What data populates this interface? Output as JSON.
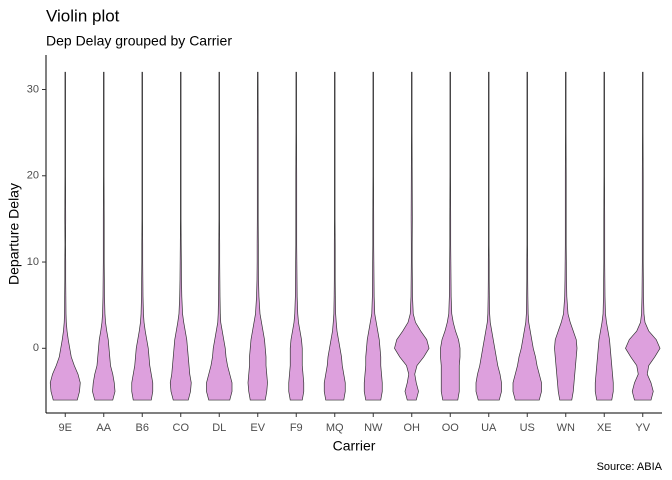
{
  "chart_data": {
    "type": "violin",
    "title": "Violin plot",
    "subtitle": "Dep Delay grouped by Carrier",
    "x_label": "Carrier",
    "y_label": "Departure Delay",
    "caption": "Source: ABIA",
    "color": "#dda0dd",
    "outline_color": "#333333",
    "ylim": [
      -7.5,
      34
    ],
    "yticks": [
      0,
      10,
      20,
      30
    ],
    "categories": [
      "9E",
      "AA",
      "B6",
      "CO",
      "DL",
      "EV",
      "F9",
      "MQ",
      "NW",
      "OH",
      "OO",
      "UA",
      "US",
      "WN",
      "XE",
      "YV"
    ],
    "density_y": [
      -6,
      -5,
      -4,
      -3,
      -2,
      -1,
      0,
      1,
      2,
      3,
      4,
      6,
      8,
      10,
      12,
      15,
      20,
      25,
      32
    ],
    "densities": [
      [
        0.8,
        0.95,
        1.0,
        0.85,
        0.6,
        0.4,
        0.3,
        0.2,
        0.12,
        0.07,
        0.05,
        0.04,
        0.03,
        0.03,
        0.02,
        0.03,
        0.02,
        0.02,
        0.02
      ],
      [
        0.6,
        0.75,
        0.7,
        0.6,
        0.45,
        0.4,
        0.35,
        0.3,
        0.2,
        0.12,
        0.08,
        0.05,
        0.04,
        0.03,
        0.03,
        0.03,
        0.02,
        0.02,
        0.02
      ],
      [
        0.6,
        0.7,
        0.7,
        0.6,
        0.5,
        0.45,
        0.4,
        0.3,
        0.2,
        0.12,
        0.08,
        0.05,
        0.04,
        0.03,
        0.03,
        0.02,
        0.02,
        0.02,
        0.02
      ],
      [
        0.5,
        0.65,
        0.7,
        0.6,
        0.55,
        0.5,
        0.45,
        0.4,
        0.3,
        0.2,
        0.12,
        0.07,
        0.05,
        0.04,
        0.03,
        0.02,
        0.02,
        0.02,
        0.02
      ],
      [
        0.7,
        0.85,
        0.85,
        0.7,
        0.55,
        0.45,
        0.4,
        0.3,
        0.2,
        0.1,
        0.07,
        0.05,
        0.04,
        0.03,
        0.03,
        0.02,
        0.02,
        0.02,
        0.02
      ],
      [
        0.5,
        0.6,
        0.65,
        0.6,
        0.55,
        0.55,
        0.5,
        0.45,
        0.35,
        0.25,
        0.15,
        0.08,
        0.05,
        0.04,
        0.04,
        0.03,
        0.03,
        0.03,
        0.02
      ],
      [
        0.4,
        0.5,
        0.5,
        0.45,
        0.4,
        0.4,
        0.4,
        0.35,
        0.25,
        0.15,
        0.1,
        0.06,
        0.05,
        0.04,
        0.03,
        0.03,
        0.03,
        0.02,
        0.02
      ],
      [
        0.6,
        0.7,
        0.7,
        0.6,
        0.5,
        0.45,
        0.35,
        0.25,
        0.15,
        0.1,
        0.06,
        0.04,
        0.03,
        0.03,
        0.03,
        0.02,
        0.02,
        0.02,
        0.02
      ],
      [
        0.5,
        0.6,
        0.6,
        0.55,
        0.5,
        0.5,
        0.45,
        0.4,
        0.3,
        0.2,
        0.1,
        0.06,
        0.05,
        0.04,
        0.03,
        0.03,
        0.02,
        0.02,
        0.02
      ],
      [
        0.3,
        0.45,
        0.3,
        0.2,
        0.35,
        0.8,
        1.15,
        1.0,
        0.6,
        0.25,
        0.1,
        0.05,
        0.04,
        0.03,
        0.03,
        0.04,
        0.03,
        0.02,
        0.02
      ],
      [
        0.5,
        0.6,
        0.6,
        0.6,
        0.6,
        0.65,
        0.65,
        0.55,
        0.35,
        0.2,
        0.1,
        0.06,
        0.05,
        0.04,
        0.03,
        0.03,
        0.02,
        0.02,
        0.02
      ],
      [
        0.7,
        0.85,
        0.85,
        0.75,
        0.6,
        0.5,
        0.4,
        0.3,
        0.2,
        0.1,
        0.06,
        0.04,
        0.03,
        0.03,
        0.02,
        0.02,
        0.02,
        0.02,
        0.02
      ],
      [
        0.8,
        0.95,
        0.95,
        0.8,
        0.65,
        0.55,
        0.4,
        0.3,
        0.2,
        0.1,
        0.06,
        0.04,
        0.03,
        0.03,
        0.02,
        0.02,
        0.02,
        0.02,
        0.02
      ],
      [
        0.4,
        0.5,
        0.55,
        0.6,
        0.65,
        0.7,
        0.75,
        0.7,
        0.5,
        0.3,
        0.15,
        0.07,
        0.05,
        0.04,
        0.03,
        0.03,
        0.03,
        0.02,
        0.02
      ],
      [
        0.5,
        0.6,
        0.6,
        0.55,
        0.5,
        0.45,
        0.4,
        0.35,
        0.25,
        0.15,
        0.08,
        0.05,
        0.04,
        0.03,
        0.03,
        0.03,
        0.02,
        0.02,
        0.02
      ],
      [
        0.55,
        0.7,
        0.55,
        0.3,
        0.4,
        0.8,
        1.15,
        0.9,
        0.4,
        0.15,
        0.08,
        0.05,
        0.04,
        0.03,
        0.03,
        0.03,
        0.03,
        0.02,
        0.02
      ]
    ]
  }
}
